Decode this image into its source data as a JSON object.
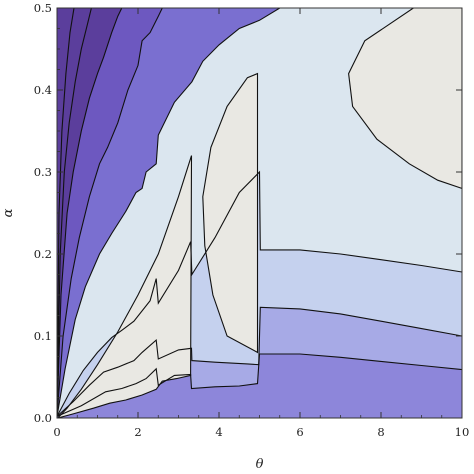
{
  "chart_data": {
    "type": "contour",
    "title": "",
    "xlabel": "θ",
    "ylabel": "α",
    "xlim": [
      0,
      10
    ],
    "ylim": [
      0,
      0.5
    ],
    "x_ticks": [
      "0",
      "2",
      "4",
      "6",
      "8",
      "10"
    ],
    "x_tick_values": [
      0,
      2,
      4,
      6,
      8,
      10
    ],
    "y_ticks": [
      "0.0",
      "0.1",
      "0.2",
      "0.3",
      "0.4",
      "0.5"
    ],
    "y_tick_values": [
      0.0,
      0.1,
      0.2,
      0.3,
      0.4,
      0.5
    ],
    "grid": false,
    "colors": {
      "level_1": "#8d86da",
      "level_2": "#a7aae6",
      "level_3": "#c5d1ee",
      "level_4": "#dbe6ef",
      "level_5": "#e9e8e3",
      "dark_1": "#7a6fd0",
      "dark_2": "#6d58c0",
      "dark_3": "#5b3e9c",
      "line": "#111111",
      "frame": "#333333"
    },
    "regions": [
      {
        "name": "boundary-1",
        "points": [
          [
            0,
            0.002
          ],
          [
            0.6,
            0.015
          ],
          [
            1.2,
            0.032
          ],
          [
            1.6,
            0.036
          ],
          [
            1.95,
            0.042
          ],
          [
            2.2,
            0.048
          ],
          [
            2.45,
            0.06
          ],
          [
            2.5,
            0.04
          ],
          [
            2.9,
            0.052
          ],
          [
            3.3,
            0.053
          ],
          [
            3.32,
            0.036
          ],
          [
            3.9,
            0.038
          ],
          [
            4.5,
            0.039
          ],
          [
            4.95,
            0.042
          ],
          [
            5.0,
            0.078
          ],
          [
            6,
            0.078
          ],
          [
            7,
            0.074
          ],
          [
            8,
            0.069
          ],
          [
            9,
            0.064
          ],
          [
            10,
            0.059
          ]
        ]
      },
      {
        "name": "boundary-2",
        "points": [
          [
            0,
            0.002
          ],
          [
            0.4,
            0.02
          ],
          [
            0.8,
            0.04
          ],
          [
            1.15,
            0.056
          ],
          [
            1.5,
            0.062
          ],
          [
            1.9,
            0.07
          ],
          [
            2.1,
            0.08
          ],
          [
            2.45,
            0.095
          ],
          [
            2.5,
            0.072
          ],
          [
            3.0,
            0.083
          ],
          [
            3.32,
            0.085
          ],
          [
            3.33,
            0.07
          ],
          [
            3.9,
            0.068
          ],
          [
            4.7,
            0.066
          ],
          [
            4.98,
            0.065
          ],
          [
            5.02,
            0.135
          ],
          [
            6,
            0.133
          ],
          [
            7,
            0.127
          ],
          [
            8,
            0.118
          ],
          [
            9,
            0.109
          ],
          [
            10,
            0.1
          ]
        ]
      },
      {
        "name": "boundary-3",
        "points": [
          [
            0,
            0.002
          ],
          [
            0.3,
            0.03
          ],
          [
            0.65,
            0.058
          ],
          [
            1.0,
            0.08
          ],
          [
            1.35,
            0.098
          ],
          [
            1.6,
            0.107
          ],
          [
            1.9,
            0.118
          ],
          [
            2.3,
            0.143
          ],
          [
            2.45,
            0.17
          ],
          [
            2.5,
            0.14
          ],
          [
            3.0,
            0.18
          ],
          [
            3.3,
            0.215
          ],
          [
            3.33,
            0.175
          ],
          [
            3.9,
            0.22
          ],
          [
            4.5,
            0.275
          ],
          [
            5.0,
            0.3
          ],
          [
            5.02,
            0.205
          ],
          [
            6,
            0.205
          ],
          [
            7,
            0.2
          ],
          [
            8,
            0.193
          ],
          [
            9,
            0.186
          ],
          [
            10,
            0.178
          ]
        ]
      },
      {
        "name": "boundary-4",
        "points": [
          [
            0,
            0.002
          ],
          [
            0.2,
            0.06
          ],
          [
            0.45,
            0.12
          ],
          [
            0.7,
            0.16
          ],
          [
            1.05,
            0.2
          ],
          [
            1.35,
            0.225
          ],
          [
            1.7,
            0.252
          ],
          [
            1.95,
            0.275
          ],
          [
            2.1,
            0.28
          ],
          [
            2.2,
            0.3
          ],
          [
            2.45,
            0.31
          ],
          [
            2.5,
            0.345
          ],
          [
            2.9,
            0.385
          ],
          [
            3.33,
            0.41
          ],
          [
            3.6,
            0.435
          ],
          [
            4.0,
            0.455
          ],
          [
            4.5,
            0.475
          ],
          [
            5.0,
            0.485
          ],
          [
            5.5,
            0.5
          ]
        ]
      },
      {
        "name": "boundary-5",
        "points": [
          [
            0,
            0.002
          ],
          [
            0.15,
            0.1
          ],
          [
            0.35,
            0.17
          ],
          [
            0.55,
            0.22
          ],
          [
            0.8,
            0.27
          ],
          [
            1.05,
            0.31
          ],
          [
            1.25,
            0.33
          ],
          [
            1.5,
            0.36
          ],
          [
            1.75,
            0.4
          ],
          [
            2.0,
            0.43
          ],
          [
            2.1,
            0.46
          ],
          [
            2.3,
            0.47
          ],
          [
            2.5,
            0.49
          ],
          [
            2.6,
            0.5
          ]
        ]
      },
      {
        "name": "boundary-6",
        "points": [
          [
            0,
            0.002
          ],
          [
            0.1,
            0.15
          ],
          [
            0.25,
            0.25
          ],
          [
            0.4,
            0.3
          ],
          [
            0.6,
            0.35
          ],
          [
            0.8,
            0.39
          ],
          [
            1.0,
            0.42
          ],
          [
            1.15,
            0.44
          ],
          [
            1.35,
            0.47
          ],
          [
            1.5,
            0.49
          ],
          [
            1.6,
            0.5
          ]
        ]
      },
      {
        "name": "boundary-7",
        "points": [
          [
            0,
            0.002
          ],
          [
            0.08,
            0.2
          ],
          [
            0.18,
            0.3
          ],
          [
            0.3,
            0.36
          ],
          [
            0.45,
            0.41
          ],
          [
            0.6,
            0.45
          ],
          [
            0.75,
            0.48
          ],
          [
            0.85,
            0.5
          ]
        ]
      },
      {
        "name": "boundary-8",
        "points": [
          [
            0,
            0.002
          ],
          [
            0.05,
            0.25
          ],
          [
            0.12,
            0.35
          ],
          [
            0.22,
            0.42
          ],
          [
            0.32,
            0.47
          ],
          [
            0.42,
            0.5
          ]
        ]
      }
    ],
    "islands": [
      {
        "name": "island-left",
        "points": [
          [
            0.02,
            0.0
          ],
          [
            0.4,
            0.005
          ],
          [
            0.9,
            0.012
          ],
          [
            1.3,
            0.018
          ],
          [
            1.7,
            0.022
          ],
          [
            2.1,
            0.028
          ],
          [
            2.45,
            0.035
          ],
          [
            2.6,
            0.045
          ],
          [
            2.95,
            0.048
          ],
          [
            3.3,
            0.052
          ],
          [
            3.32,
            0.32
          ],
          [
            3.0,
            0.27
          ],
          [
            2.5,
            0.2
          ],
          [
            2.0,
            0.15
          ],
          [
            1.5,
            0.105
          ],
          [
            1.0,
            0.065
          ],
          [
            0.6,
            0.035
          ],
          [
            0.25,
            0.012
          ]
        ]
      },
      {
        "name": "island-middle",
        "points": [
          [
            4.95,
            0.08
          ],
          [
            4.2,
            0.1
          ],
          [
            3.85,
            0.15
          ],
          [
            3.65,
            0.21
          ],
          [
            3.6,
            0.27
          ],
          [
            3.8,
            0.33
          ],
          [
            4.2,
            0.38
          ],
          [
            4.7,
            0.415
          ],
          [
            4.95,
            0.42
          ]
        ]
      },
      {
        "name": "island-right",
        "points": [
          [
            8.8,
            0.5
          ],
          [
            7.6,
            0.46
          ],
          [
            7.2,
            0.42
          ],
          [
            7.3,
            0.38
          ],
          [
            7.9,
            0.34
          ],
          [
            8.7,
            0.31
          ],
          [
            9.4,
            0.29
          ],
          [
            10,
            0.28
          ],
          [
            10,
            0.5
          ]
        ]
      }
    ]
  }
}
